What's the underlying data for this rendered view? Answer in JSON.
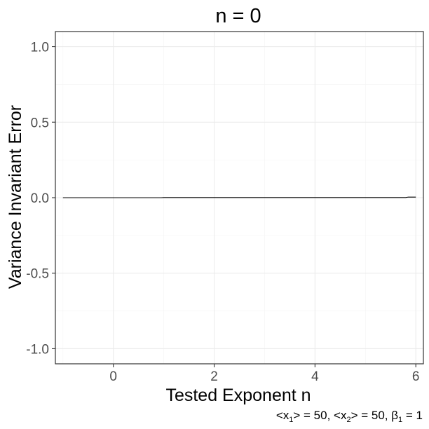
{
  "chart_data": {
    "type": "line",
    "title": "n = 0",
    "xlabel": "Tested Exponent n",
    "ylabel": "Variance Invariant Error",
    "caption": {
      "prefix1": "<x",
      "sub1": "1",
      "mid1": "> = 50, <x",
      "sub2": "2",
      "mid2": "> = 50, β",
      "sub3": "1",
      "suffix": " = 1"
    },
    "xlim": [
      -1.15,
      6.15
    ],
    "ylim": [
      -1.1,
      1.1
    ],
    "x_ticks": [
      0,
      2,
      4,
      6
    ],
    "x_tick_labels": [
      "0",
      "2",
      "4",
      "6"
    ],
    "y_ticks": [
      -1.0,
      -0.5,
      0.0,
      0.5,
      1.0
    ],
    "y_tick_labels": [
      "-1.0",
      "-0.5",
      "0.0",
      "0.5",
      "1.0"
    ],
    "grid": true,
    "series": [
      {
        "x": [
          -1.0,
          0.0,
          0.95,
          1.0,
          2.0,
          3.0,
          4.0,
          5.0,
          5.8,
          5.85,
          6.0
        ],
        "values": [
          0.0,
          0.0,
          0.0,
          0.001,
          0.001,
          0.001,
          0.001,
          0.001,
          0.001,
          0.004,
          0.004
        ]
      }
    ]
  }
}
